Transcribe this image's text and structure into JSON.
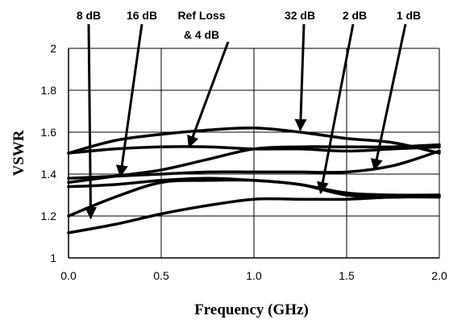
{
  "chart_data": {
    "type": "line",
    "title": "",
    "xlabel": "Frequency (GHz)",
    "ylabel": "VSWR",
    "xlim": [
      0.0,
      2.0
    ],
    "ylim": [
      1,
      2
    ],
    "x_ticks": [
      "0.0",
      "0.5",
      "1.0",
      "1.5",
      "2.0"
    ],
    "y_ticks": [
      "1",
      "1.2",
      "1.4",
      "1.6",
      "1.8",
      "2"
    ],
    "grid": true,
    "legend": "none",
    "series": [
      {
        "name": "Ref Loss & 4 dB",
        "x": [
          0.0,
          0.25,
          0.5,
          0.75,
          1.0,
          1.25,
          1.5,
          1.75,
          2.0
        ],
        "y": [
          1.5,
          1.52,
          1.53,
          1.53,
          1.52,
          1.52,
          1.51,
          1.52,
          1.53
        ]
      },
      {
        "name": "32 dB",
        "x": [
          0.0,
          0.25,
          0.5,
          0.75,
          1.0,
          1.25,
          1.5,
          1.75,
          2.0
        ],
        "y": [
          1.5,
          1.56,
          1.59,
          1.61,
          1.62,
          1.6,
          1.57,
          1.55,
          1.5
        ]
      },
      {
        "name": "1 dB",
        "x": [
          0.0,
          0.25,
          0.5,
          0.75,
          1.0,
          1.25,
          1.5,
          1.75,
          2.0
        ],
        "y": [
          1.38,
          1.39,
          1.4,
          1.41,
          1.41,
          1.41,
          1.41,
          1.44,
          1.51
        ]
      },
      {
        "name": "16 dB",
        "x": [
          0.0,
          0.25,
          0.5,
          0.75,
          1.0,
          1.25,
          1.5,
          1.75,
          2.0
        ],
        "y": [
          1.36,
          1.39,
          1.42,
          1.47,
          1.52,
          1.53,
          1.53,
          1.53,
          1.54
        ]
      },
      {
        "name": "2 dB",
        "x": [
          0.0,
          0.25,
          0.5,
          0.75,
          1.0,
          1.25,
          1.5,
          1.75,
          2.0
        ],
        "y": [
          1.34,
          1.35,
          1.37,
          1.38,
          1.37,
          1.35,
          1.3,
          1.29,
          1.3
        ]
      },
      {
        "name": "8 dB",
        "x": [
          0.0,
          0.25,
          0.5,
          0.75,
          1.0,
          1.25,
          1.5,
          1.75,
          2.0
        ],
        "y": [
          1.2,
          1.29,
          1.36,
          1.37,
          1.37,
          1.35,
          1.31,
          1.3,
          1.3
        ]
      },
      {
        "name": "",
        "x": [
          0.0,
          0.25,
          0.5,
          0.75,
          1.0,
          1.25,
          1.5,
          1.75,
          2.0
        ],
        "y": [
          1.12,
          1.16,
          1.21,
          1.25,
          1.28,
          1.28,
          1.28,
          1.29,
          1.29
        ]
      }
    ],
    "annotations": [
      {
        "label": "8 dB",
        "points_to": [
          0.12,
          1.19
        ]
      },
      {
        "label": "16 dB",
        "points_to": [
          0.28,
          1.39
        ]
      },
      {
        "label": "Ref Loss",
        "label2": "& 4 dB",
        "points_to": [
          0.65,
          1.53
        ]
      },
      {
        "label": "32 dB",
        "points_to": [
          1.25,
          1.61
        ]
      },
      {
        "label": "2 dB",
        "points_to": [
          1.36,
          1.31
        ]
      },
      {
        "label": "1 dB",
        "points_to": [
          1.65,
          1.42
        ]
      }
    ],
    "colors": {
      "lines": "#000000",
      "grid": "#000000",
      "background": "#ffffff"
    }
  }
}
